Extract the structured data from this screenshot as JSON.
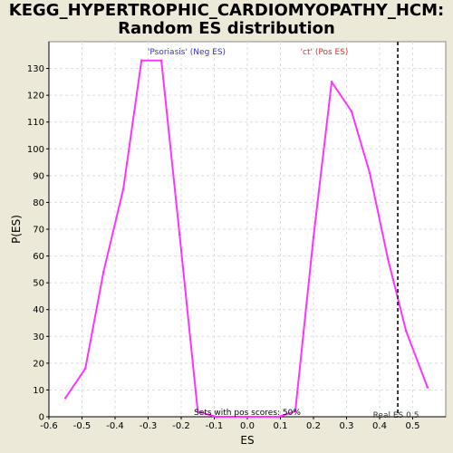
{
  "title": {
    "line1": "KEGG_HYPERTROPHIC_CARDIOMYOPATHY_HCM:",
    "line2": "Random ES distribution"
  },
  "colors": {
    "background": "#ECE9D8",
    "plot_bg": "#FFFFFF",
    "line": "#FF33FF",
    "neg_label": "#3333CC",
    "pos_label": "#CC3333",
    "grid": "#DDDDDD",
    "marker": "#333333"
  },
  "chart_data": {
    "type": "line",
    "title": "KEGG_HYPERTROPHIC_CARDIOMYOPATHY_HCM: Random ES distribution",
    "xlabel": "ES",
    "ylabel": "P(ES)",
    "xlim": [
      -0.6,
      0.6
    ],
    "ylim": [
      0,
      140
    ],
    "xticks": [
      -0.6,
      -0.5,
      -0.4,
      -0.3,
      -0.2,
      -0.1,
      0.0,
      0.1,
      0.2,
      0.3,
      0.4,
      0.5
    ],
    "xtick_labels": [
      "-0.6",
      "-0.5",
      "-0.4",
      "-0.3",
      "-0.2",
      "-0.1",
      "0.0",
      "0.1",
      "0.2",
      "0.3",
      "0.4",
      "0.5"
    ],
    "yticks": [
      0,
      10,
      20,
      30,
      40,
      50,
      60,
      70,
      80,
      90,
      100,
      110,
      120,
      130
    ],
    "ytick_labels": [
      "0",
      "10",
      "20",
      "30",
      "40",
      "50",
      "60",
      "70",
      "80",
      "90",
      "100",
      "110",
      "120",
      "130"
    ],
    "grid": true,
    "series": [
      {
        "points": [
          [
            -0.55,
            7
          ],
          [
            -0.49,
            18
          ],
          [
            -0.435,
            54
          ],
          [
            -0.375,
            85
          ],
          [
            -0.32,
            133
          ],
          [
            -0.26,
            133
          ],
          [
            -0.205,
            68
          ],
          [
            -0.15,
            2
          ],
          [
            -0.095,
            0
          ],
          [
            0.0,
            0
          ],
          [
            0.095,
            0
          ],
          [
            0.145,
            2
          ],
          [
            0.2,
            67
          ],
          [
            0.255,
            125
          ],
          [
            0.315,
            114
          ],
          [
            0.37,
            91
          ],
          [
            0.425,
            59
          ],
          [
            0.48,
            32
          ],
          [
            0.545,
            11
          ]
        ]
      }
    ],
    "annotations": {
      "neg_label": "'Psoriasis' (Neg ES)",
      "pos_label": "'ct' (Pos ES)",
      "pos_fraction": "Sets with pos scores: 50%",
      "real_es_label": "Real ES 0.5",
      "real_es_value": 0.455
    }
  }
}
